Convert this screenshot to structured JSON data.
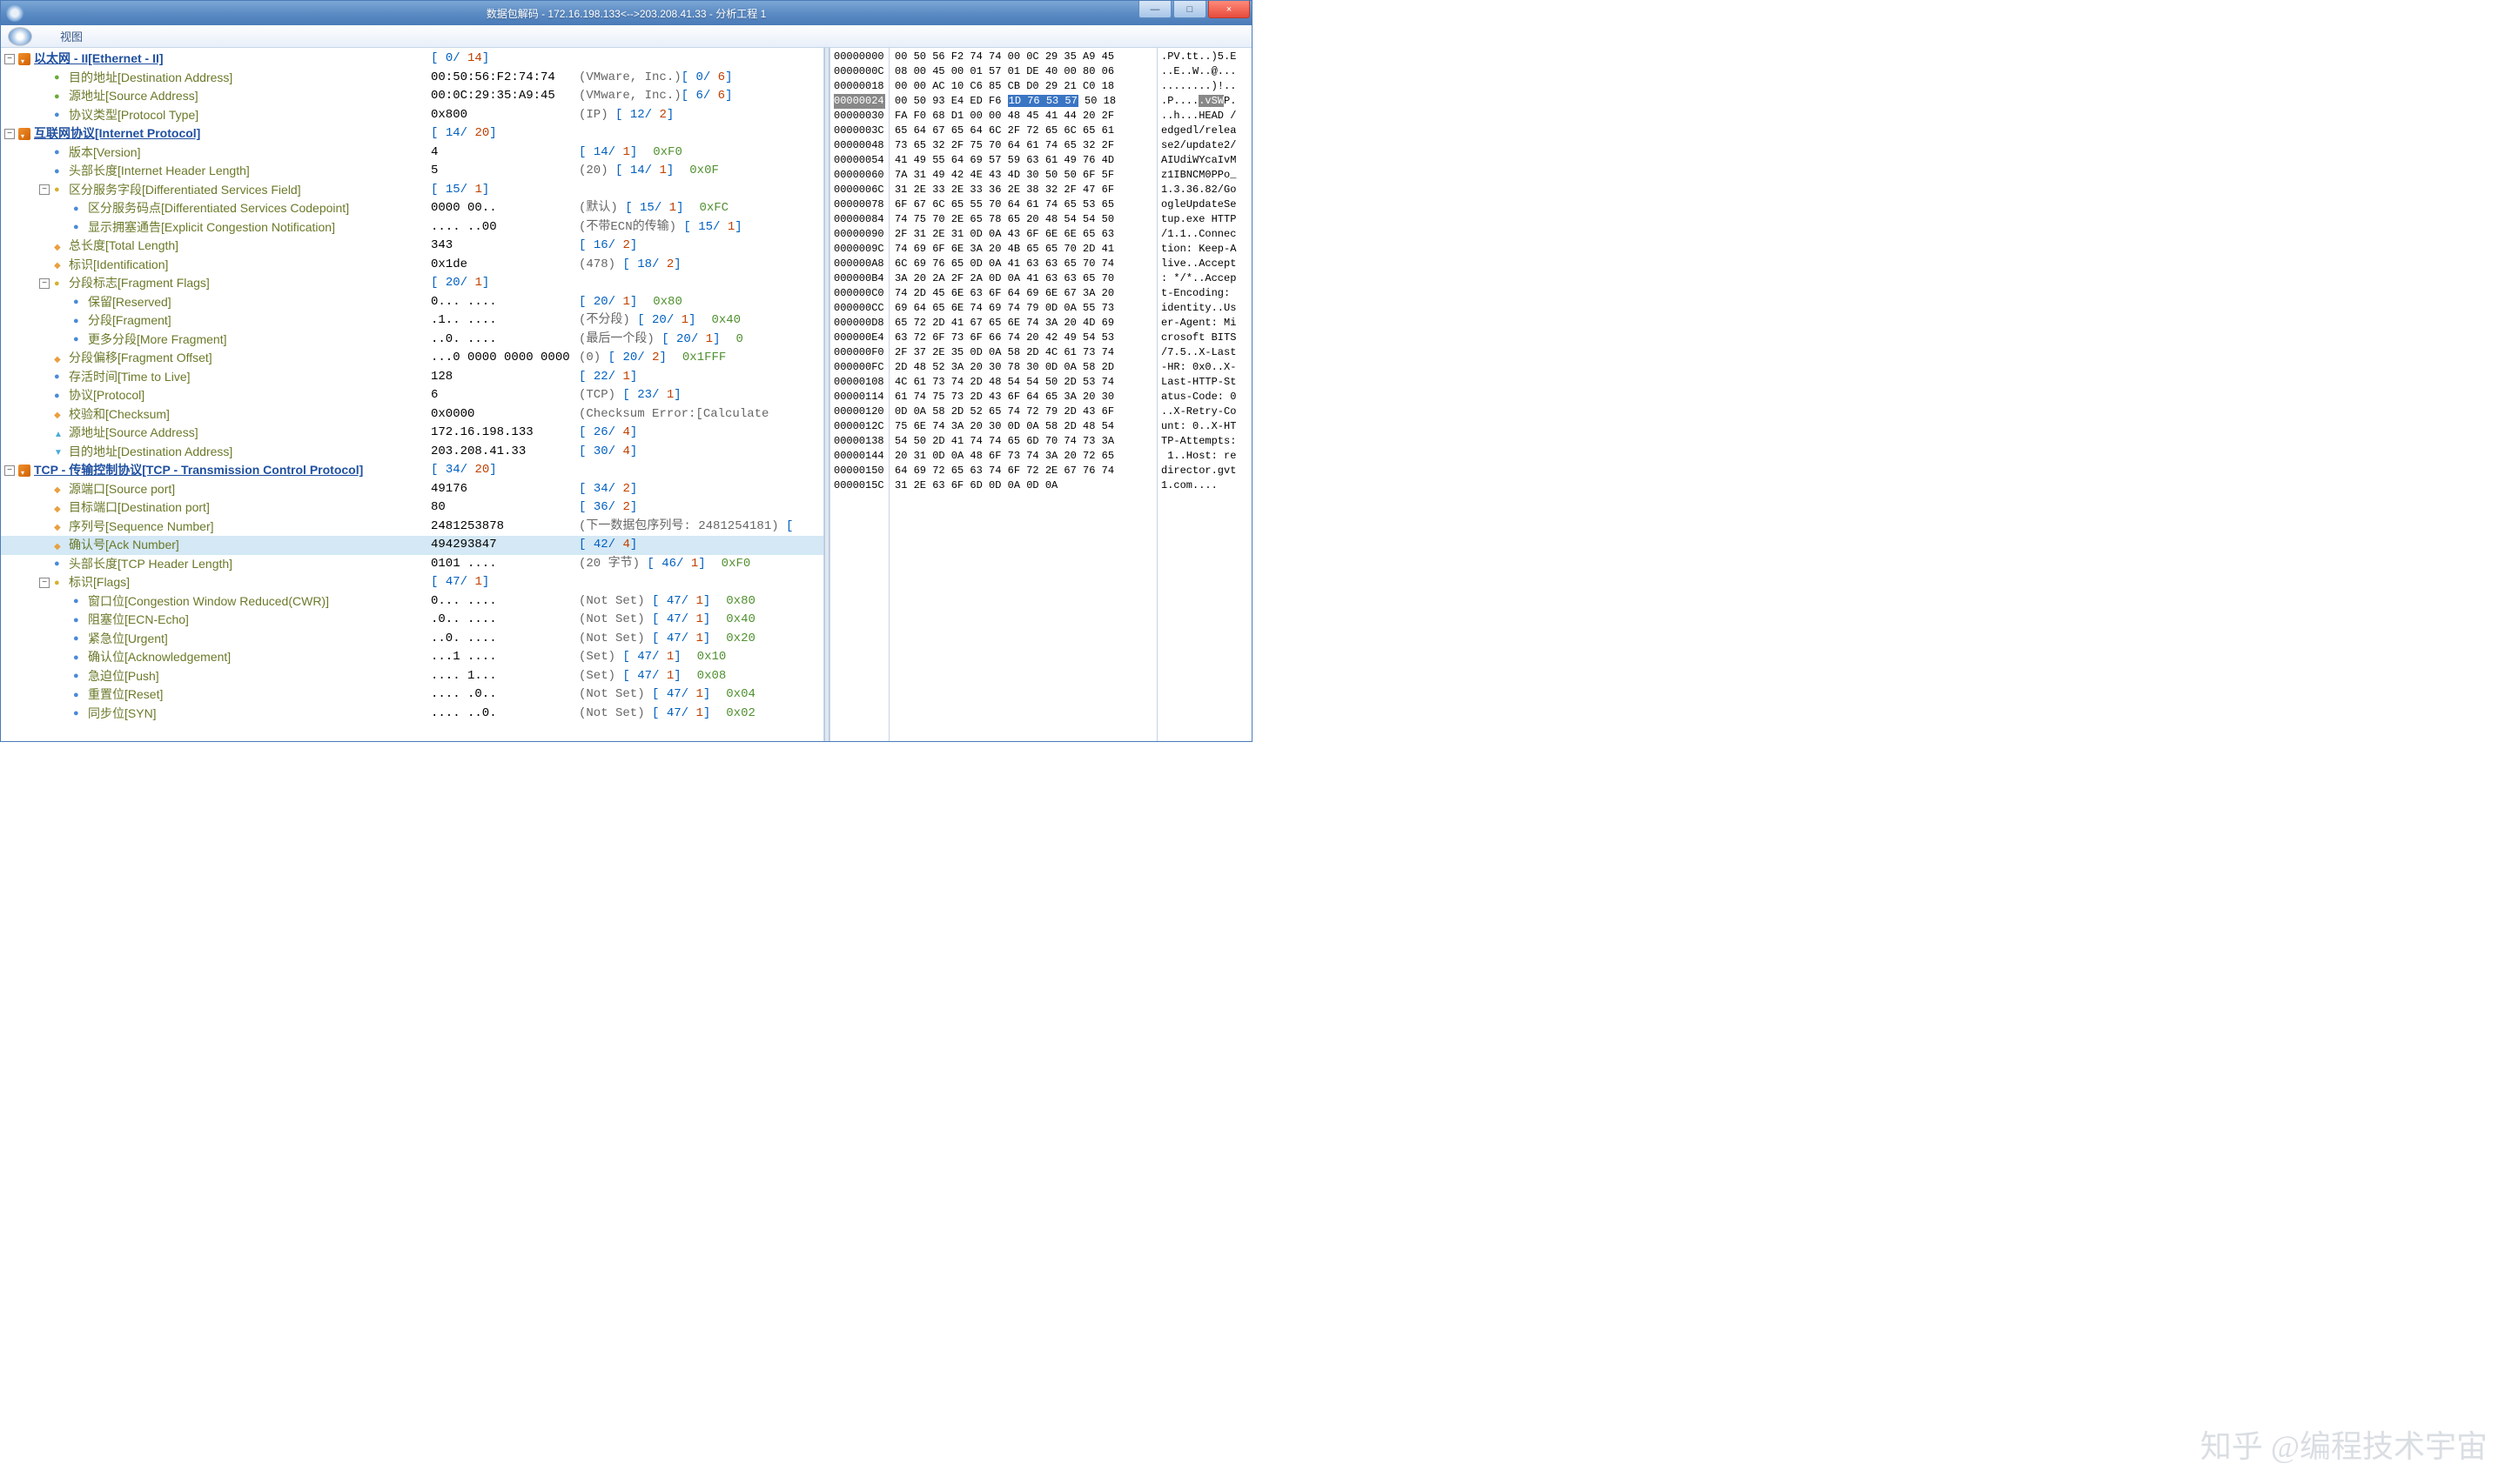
{
  "window": {
    "title": "数据包解码 - 172.16.198.133<-->203.208.41.33 - 分析工程 1",
    "min": "—",
    "max": "□",
    "close": "×"
  },
  "menu": {
    "view": "视图"
  },
  "tree": [
    {
      "d": 0,
      "t": "proto",
      "exp": "-",
      "ic": "proto",
      "lbl": "以太网 - II[Ethernet - II]",
      "proto": true,
      "val": "",
      "br": "[ 0/ 14]"
    },
    {
      "d": 1,
      "t": "leaf",
      "ic": "field-green",
      "lbl": "目的地址[Destination Address]",
      "val": "00:50:56:F2:74:74",
      "paren": "(VMware, Inc.)",
      "br": "[ 0/ 6]"
    },
    {
      "d": 1,
      "t": "leaf",
      "ic": "field-green",
      "lbl": "源地址[Source Address]",
      "val": "00:0C:29:35:A9:45",
      "paren": "(VMware, Inc.)",
      "br": "[ 6/ 6]"
    },
    {
      "d": 1,
      "t": "leaf",
      "ic": "field-blue",
      "lbl": "协议类型[Protocol Type]",
      "val": "0x800",
      "paren": "(IP)",
      "br": "[ 12/ 2]",
      "brpad": "      "
    },
    {
      "d": 0,
      "t": "proto",
      "exp": "-",
      "ic": "proto",
      "lbl": "互联网协议[Internet Protocol]",
      "proto": true,
      "val": "",
      "br": "[ 14/ 20]"
    },
    {
      "d": 1,
      "t": "leaf",
      "ic": "field-blue",
      "lbl": "版本[Version]",
      "val": "4",
      "br": "[ 14/ 1]",
      "mask": "0xF0"
    },
    {
      "d": 1,
      "t": "leaf",
      "ic": "field-blue",
      "lbl": "头部长度[Internet Header Length]",
      "val": "5",
      "paren": "(20)",
      "br": "[ 14/ 1]",
      "brpad": "   ",
      "mask": "0x0F"
    },
    {
      "d": 1,
      "t": "group",
      "exp": "-",
      "ic": "field-yellow",
      "lbl": "区分服务字段[Differentiated Services Field]",
      "val": "",
      "br": "[ 15/ 1]"
    },
    {
      "d": 2,
      "t": "leaf",
      "ic": "field-blue",
      "lbl": "区分服务码点[Differentiated Services Codepoint]",
      "val": "0000 00..",
      "paren": "(默认)",
      "br": "[ 15/ 1]",
      "brpad": "   ",
      "mask": "0xFC"
    },
    {
      "d": 2,
      "t": "leaf",
      "ic": "field-blue",
      "lbl": "显示拥塞通告[Explicit Congestion Notification]",
      "val": ".... ..00",
      "paren": "(不带ECN的传输)",
      "br": "[ 15/ 1]",
      "brpad": "   "
    },
    {
      "d": 1,
      "t": "leaf",
      "ic": "field-orange",
      "lbl": "总长度[Total Length]",
      "val": "343",
      "br": "[ 16/ 2]"
    },
    {
      "d": 1,
      "t": "leaf",
      "ic": "field-orange",
      "lbl": "标识[Identification]",
      "val": "0x1de",
      "paren": "(478)",
      "br": "[ 18/ 2]",
      "brpad": "   "
    },
    {
      "d": 1,
      "t": "group",
      "exp": "-",
      "ic": "field-yellow",
      "lbl": "分段标志[Fragment Flags]",
      "val": "",
      "br": "[ 20/ 1]"
    },
    {
      "d": 2,
      "t": "leaf",
      "ic": "field-blue",
      "lbl": "保留[Reserved]",
      "val": "0... ....",
      "br": "[ 20/ 1]",
      "mask": "0x80"
    },
    {
      "d": 2,
      "t": "leaf",
      "ic": "field-blue",
      "lbl": "分段[Fragment]",
      "val": ".1.. ....",
      "paren": "(不分段)",
      "br": "[ 20/ 1]",
      "brpad": "   ",
      "mask": "0x40"
    },
    {
      "d": 2,
      "t": "leaf",
      "ic": "field-blue",
      "lbl": "更多分段[More Fragment]",
      "val": "..0. ....",
      "paren": "(最后一个段)",
      "br": "[ 20/ 1]",
      "brpad": "   ",
      "mask": "0"
    },
    {
      "d": 1,
      "t": "leaf",
      "ic": "field-orange",
      "lbl": "分段偏移[Fragment Offset]",
      "val": "...0 0000 0000 0000",
      "paren": "(0)",
      "br": "[ 20/ 2]",
      "brpad": "   ",
      "mask": "0x1FFF"
    },
    {
      "d": 1,
      "t": "leaf",
      "ic": "field-blue",
      "lbl": "存活时间[Time to Live]",
      "val": "128",
      "br": "[ 22/ 1]"
    },
    {
      "d": 1,
      "t": "leaf",
      "ic": "field-blue",
      "lbl": "协议[Protocol]",
      "val": "6",
      "paren": "(TCP)",
      "br": "[ 23/ 1]",
      "brpad": "   "
    },
    {
      "d": 1,
      "t": "leaf",
      "ic": "field-orange",
      "lbl": "校验和[Checksum]",
      "val": "0x0000",
      "paren": "(Checksum Error:[Calculate"
    },
    {
      "d": 1,
      "t": "leaf",
      "ic": "field-src",
      "lbl": "源地址[Source Address]",
      "val": "172.16.198.133",
      "br": "[ 26/ 4]"
    },
    {
      "d": 1,
      "t": "leaf",
      "ic": "field-dst",
      "lbl": "目的地址[Destination Address]",
      "val": "203.208.41.33",
      "br": "[ 30/ 4]"
    },
    {
      "d": 0,
      "t": "proto",
      "exp": "-",
      "ic": "proto",
      "lbl": "TCP - 传输控制协议[TCP - Transmission Control Protocol]",
      "proto": true,
      "val": "",
      "br": "[ 34/ 20]"
    },
    {
      "d": 1,
      "t": "leaf",
      "ic": "field-orange",
      "lbl": "源端口[Source port]",
      "val": "49176",
      "br": "[ 34/ 2]"
    },
    {
      "d": 1,
      "t": "leaf",
      "ic": "field-orange",
      "lbl": "目标端口[Destination port]",
      "val": "80",
      "br": "[ 36/ 2]"
    },
    {
      "d": 1,
      "t": "leaf",
      "ic": "field-orange",
      "lbl": "序列号[Sequence Number]",
      "val": "2481253878",
      "paren": "(下一数据包序列号: 2481254181)",
      "br": "[",
      "brpad": "   "
    },
    {
      "d": 1,
      "t": "leaf",
      "ic": "field-orange",
      "lbl": "确认号[Ack Number]",
      "val": "494293847",
      "br": "[ 42/ 4]",
      "hl": true
    },
    {
      "d": 1,
      "t": "leaf",
      "ic": "field-blue",
      "lbl": "头部长度[TCP Header Length]",
      "val": "0101 ....",
      "paren": "(20 字节)",
      "br": "[ 46/ 1]",
      "brpad": "   ",
      "mask": "0xF0"
    },
    {
      "d": 1,
      "t": "group",
      "exp": "-",
      "ic": "field-yellow",
      "lbl": "标识[Flags]",
      "val": "",
      "br": "[ 47/ 1]"
    },
    {
      "d": 2,
      "t": "leaf",
      "ic": "field-blue",
      "lbl": "窗口位[Congestion Window Reduced(CWR)]",
      "val": "0... ....",
      "paren": "(Not Set)",
      "br": "[ 47/ 1]",
      "brpad": "   ",
      "mask": "0x80"
    },
    {
      "d": 2,
      "t": "leaf",
      "ic": "field-blue",
      "lbl": "阻塞位[ECN-Echo]",
      "val": ".0.. ....",
      "paren": "(Not Set)",
      "br": "[ 47/ 1]",
      "brpad": "   ",
      "mask": "0x40"
    },
    {
      "d": 2,
      "t": "leaf",
      "ic": "field-blue",
      "lbl": "紧急位[Urgent]",
      "val": "..0. ....",
      "paren": "(Not Set)",
      "br": "[ 47/ 1]",
      "brpad": "   ",
      "mask": "0x20"
    },
    {
      "d": 2,
      "t": "leaf",
      "ic": "field-blue",
      "lbl": "确认位[Acknowledgement]",
      "val": "...1 ....",
      "paren": "(Set)",
      "br": "[47/ 1]",
      "brpad": "   ",
      "mask": "0x10"
    },
    {
      "d": 2,
      "t": "leaf",
      "ic": "field-blue",
      "lbl": "急迫位[Push]",
      "val": ".... 1...",
      "paren": "(Set)",
      "br": "[47/ 1]",
      "brpad": "   ",
      "mask": "0x08"
    },
    {
      "d": 2,
      "t": "leaf",
      "ic": "field-blue",
      "lbl": "重置位[Reset]",
      "val": ".... .0..",
      "paren": "(Not Set)",
      "br": "[ 47/ 1]",
      "brpad": "   ",
      "mask": "0x04"
    },
    {
      "d": 2,
      "t": "leaf",
      "ic": "field-blue",
      "lbl": "同步位[SYN]",
      "val": ".... ..0.",
      "paren": "(Not Set)",
      "br": "[ 47/ 1]",
      "brpad": "   ",
      "mask": "0x02"
    }
  ],
  "hex": {
    "rows": [
      {
        "off": "00000000",
        "b": "00 50 56 F2 74 74 00 0C 29 35 A9 45",
        "a": ".PV.tt..)5.E"
      },
      {
        "off": "0000000C",
        "b": "08 00 45 00 01 57 01 DE 40 00 80 06",
        "a": "..E..W..@..."
      },
      {
        "off": "00000018",
        "b": "00 00 AC 10 C6 85 CB D0 29 21 C0 18",
        "a": "........)!.."
      },
      {
        "off": "00000024",
        "b": "00 50 93 E4 ED F6 |1D 76 53 57| 50 18",
        "a": ".P....|.vSW|P.",
        "sel": true
      },
      {
        "off": "00000030",
        "b": "FA F0 68 D1 00 00 48 45 41 44 20 2F",
        "a": "..h...HEAD /"
      },
      {
        "off": "0000003C",
        "b": "65 64 67 65 64 6C 2F 72 65 6C 65 61",
        "a": "edgedl/relea"
      },
      {
        "off": "00000048",
        "b": "73 65 32 2F 75 70 64 61 74 65 32 2F",
        "a": "se2/update2/"
      },
      {
        "off": "00000054",
        "b": "41 49 55 64 69 57 59 63 61 49 76 4D",
        "a": "AIUdiWYcaIvM"
      },
      {
        "off": "00000060",
        "b": "7A 31 49 42 4E 43 4D 30 50 50 6F 5F",
        "a": "z1IBNCM0PPo_"
      },
      {
        "off": "0000006C",
        "b": "31 2E 33 2E 33 36 2E 38 32 2F 47 6F",
        "a": "1.3.36.82/Go"
      },
      {
        "off": "00000078",
        "b": "6F 67 6C 65 55 70 64 61 74 65 53 65",
        "a": "ogleUpdateSe"
      },
      {
        "off": "00000084",
        "b": "74 75 70 2E 65 78 65 20 48 54 54 50",
        "a": "tup.exe HTTP"
      },
      {
        "off": "00000090",
        "b": "2F 31 2E 31 0D 0A 43 6F 6E 6E 65 63",
        "a": "/1.1..Connec"
      },
      {
        "off": "0000009C",
        "b": "74 69 6F 6E 3A 20 4B 65 65 70 2D 41",
        "a": "tion: Keep-A"
      },
      {
        "off": "000000A8",
        "b": "6C 69 76 65 0D 0A 41 63 63 65 70 74",
        "a": "live..Accept"
      },
      {
        "off": "000000B4",
        "b": "3A 20 2A 2F 2A 0D 0A 41 63 63 65 70",
        "a": ": */*..Accep"
      },
      {
        "off": "000000C0",
        "b": "74 2D 45 6E 63 6F 64 69 6E 67 3A 20",
        "a": "t-Encoding: "
      },
      {
        "off": "000000CC",
        "b": "69 64 65 6E 74 69 74 79 0D 0A 55 73",
        "a": "identity..Us"
      },
      {
        "off": "000000D8",
        "b": "65 72 2D 41 67 65 6E 74 3A 20 4D 69",
        "a": "er-Agent: Mi"
      },
      {
        "off": "000000E4",
        "b": "63 72 6F 73 6F 66 74 20 42 49 54 53",
        "a": "crosoft BITS"
      },
      {
        "off": "000000F0",
        "b": "2F 37 2E 35 0D 0A 58 2D 4C 61 73 74",
        "a": "/7.5..X-Last"
      },
      {
        "off": "000000FC",
        "b": "2D 48 52 3A 20 30 78 30 0D 0A 58 2D",
        "a": "-HR: 0x0..X-"
      },
      {
        "off": "00000108",
        "b": "4C 61 73 74 2D 48 54 54 50 2D 53 74",
        "a": "Last-HTTP-St"
      },
      {
        "off": "00000114",
        "b": "61 74 75 73 2D 43 6F 64 65 3A 20 30",
        "a": "atus-Code: 0"
      },
      {
        "off": "00000120",
        "b": "0D 0A 58 2D 52 65 74 72 79 2D 43 6F",
        "a": "..X-Retry-Co"
      },
      {
        "off": "0000012C",
        "b": "75 6E 74 3A 20 30 0D 0A 58 2D 48 54",
        "a": "unt: 0..X-HT"
      },
      {
        "off": "00000138",
        "b": "54 50 2D 41 74 74 65 6D 70 74 73 3A",
        "a": "TP-Attempts:"
      },
      {
        "off": "00000144",
        "b": "20 31 0D 0A 48 6F 73 74 3A 20 72 65",
        "a": " 1..Host: re"
      },
      {
        "off": "00000150",
        "b": "64 69 72 65 63 74 6F 72 2E 67 76 74",
        "a": "director.gvt"
      },
      {
        "off": "0000015C",
        "b": "31 2E 63 6F 6D 0D 0A 0D 0A",
        "a": "1.com...."
      }
    ]
  },
  "watermark": "知乎 @编程技术宇宙"
}
